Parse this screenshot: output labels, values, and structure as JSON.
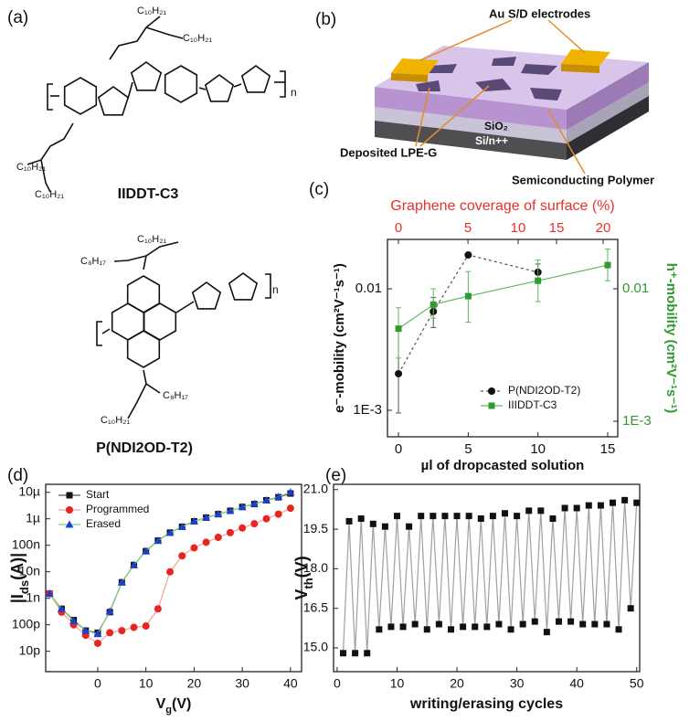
{
  "figure": {
    "a": {
      "label": "(a)",
      "molecule1": {
        "name": "IIDDT-C3",
        "substituents": [
          "C₁₀H₂₁",
          "C₁₀H₂₁",
          "C₁₀H₂₁",
          "C₁₀H₂₁"
        ],
        "repeat": "n"
      },
      "molecule2": {
        "name": "P(NDI2OD-T2)",
        "substituents": [
          "C₁₀H₂₁",
          "C₈H₁₇",
          "C₈H₁₇",
          "C₁₀H₂₁"
        ],
        "repeat": "n"
      }
    },
    "b": {
      "label": "(b)",
      "electrodes": "Au S/D electrodes",
      "oxide": "SiO₂",
      "substrate": "Si/n++",
      "flakes": "Deposited LPE-G",
      "polymer": "Semiconducting Polymer"
    }
  },
  "chart_data": [
    {
      "type": "line",
      "panel_label": "(c)",
      "xlabel": "µl of dropcasted solution",
      "ylabel": "e⁻-mobility (cm²V⁻¹s⁻¹)",
      "y2label": "h⁺-mobility (cm²V⁻¹s⁻¹)",
      "x2label": "Graphene coverage of surface (%)",
      "x2color": "#e8302a",
      "y2color": "#2f9a2f",
      "xlim": [
        -0.79,
        15.72
      ],
      "xticks": [
        0,
        5,
        10,
        15
      ],
      "x2ticks": [
        0,
        5,
        10,
        15,
        20
      ],
      "x2ticks_at_x": [
        0,
        4.98,
        8.58,
        11.33,
        14.67
      ],
      "ylog": true,
      "ylim": [
        0.000605,
        0.0255
      ],
      "yticks": [
        {
          "value": 0.001,
          "label": "1E-3"
        },
        {
          "value": 0.01,
          "label": "0.01"
        }
      ],
      "y2lim": [
        0.000763,
        0.0236
      ],
      "y2ticks": [
        {
          "value": 0.001,
          "label": "1E-3"
        },
        {
          "value": 0.01,
          "label": "0.01"
        }
      ],
      "legend": "lower right",
      "series": [
        {
          "name": "P(NDI2OD-T2)",
          "color": "#111111",
          "line_color": "#555555",
          "dash": true,
          "marker": "circle",
          "x": [
            0,
            2.5,
            5,
            10
          ],
          "values": [
            0.002,
            0.0065,
            0.019,
            0.0137
          ],
          "err_low": [
            0.00095,
            0.0048,
            null,
            0.0115
          ],
          "err_high": [
            0.0045,
            0.0085,
            null,
            0.016
          ]
        },
        {
          "name": "IIIDDT-C3",
          "color": "#2f9a2f",
          "line_color": "#5fba5f",
          "marker": "square",
          "axis": "y2",
          "x": [
            0,
            2.5,
            5,
            10,
            15
          ],
          "values": [
            0.005,
            0.0076,
            0.0088,
            0.0115,
            0.0151
          ],
          "err_low": [
            0.003,
            0.006,
            0.0056,
            0.008,
            0.0115
          ],
          "err_high": [
            0.0072,
            0.01,
            0.0135,
            0.0165,
            0.02
          ]
        }
      ]
    },
    {
      "type": "line",
      "panel_label": "(d)",
      "xlabel": [
        "V",
        "g",
        "(V)"
      ],
      "ylabel": [
        "|I",
        "ds",
        "(A)|"
      ],
      "xlim": [
        -10.8,
        42.3
      ],
      "xticks": [
        0,
        10,
        20,
        30,
        40
      ],
      "ylog": true,
      "ylim": [
        1.7e-12,
        2e-05
      ],
      "yticks": [
        {
          "value": 1e-11,
          "label": "10p"
        },
        {
          "value": 1e-10,
          "label": "100p"
        },
        {
          "value": 1e-09,
          "label": "1n"
        },
        {
          "value": 1e-08,
          "label": "10n"
        },
        {
          "value": 1e-07,
          "label": "100n"
        },
        {
          "value": 1e-06,
          "label": "1µ"
        },
        {
          "value": 1e-05,
          "label": "10µ"
        }
      ],
      "legend": "upper left",
      "x": [
        -10,
        -7.5,
        -5,
        -2.5,
        0,
        2.5,
        5,
        7.5,
        10,
        12.5,
        15,
        17.5,
        20,
        22.5,
        25,
        27.5,
        30,
        32.5,
        35,
        37.5,
        40
      ],
      "series": [
        {
          "name": "Start",
          "color": "#111111",
          "line_color": "#555555",
          "marker": "square",
          "values": [
            1.5e-09,
            4e-10,
            1.5e-10,
            6e-11,
            5e-11,
            3e-10,
            4e-09,
            1.8e-08,
            6e-08,
            1.5e-07,
            3e-07,
            5e-07,
            8e-07,
            1.1e-06,
            1.5e-06,
            2e-06,
            2.8e-06,
            3.6e-06,
            5e-06,
            6.5e-06,
            9e-06
          ]
        },
        {
          "name": "Programmed",
          "color": "#e8261f",
          "line_color": "#f4a0a0",
          "marker": "circle",
          "values": [
            1.5e-09,
            3e-10,
            1e-10,
            4e-11,
            2e-11,
            5e-11,
            6e-11,
            8e-11,
            9e-11,
            4e-10,
            1e-08,
            4e-08,
            8e-08,
            1.3e-07,
            2e-07,
            3e-07,
            4.5e-07,
            6.5e-07,
            1e-06,
            1.5e-06,
            2.5e-06
          ]
        },
        {
          "name": "Erased",
          "color": "#1d3fd0",
          "line_color": "#7fd07f",
          "marker": "triangle",
          "values": [
            1.5e-09,
            4e-10,
            1.4e-10,
            6e-11,
            4.5e-11,
            3.2e-10,
            4e-09,
            1.8e-08,
            6e-08,
            1.5e-07,
            3e-07,
            5e-07,
            8e-07,
            1.1e-06,
            1.5e-06,
            2e-06,
            2.8e-06,
            3.7e-06,
            5e-06,
            6.8e-06,
            1e-05
          ]
        }
      ]
    },
    {
      "type": "line",
      "panel_label": "(e)",
      "xlabel": "writing/erasing cycles",
      "ylabel": [
        "V",
        "th",
        "(V)"
      ],
      "xlim": [
        -0.6,
        50.5
      ],
      "xticks": [
        0,
        10,
        20,
        30,
        40,
        50
      ],
      "ylim": [
        14.1,
        21.2
      ],
      "yticks": [
        {
          "value": 15,
          "label": "15.0"
        },
        16.5,
        {
          "value": 18,
          "label": "18.0"
        },
        19.5,
        {
          "value": 21,
          "label": "21.0"
        }
      ],
      "x": [
        1,
        2,
        3,
        4,
        5,
        6,
        7,
        8,
        9,
        10,
        11,
        12,
        13,
        14,
        15,
        16,
        17,
        18,
        19,
        20,
        21,
        22,
        23,
        24,
        25,
        26,
        27,
        28,
        29,
        30,
        31,
        32,
        33,
        34,
        35,
        36,
        37,
        38,
        39,
        40,
        41,
        42,
        43,
        44,
        45,
        46,
        47,
        48,
        49,
        50
      ],
      "series": [
        {
          "color": "#111111",
          "line_color": "#a0a0a0",
          "marker": "square",
          "values": [
            14.8,
            19.8,
            14.8,
            19.9,
            14.8,
            19.7,
            15.7,
            19.6,
            15.8,
            20.0,
            15.8,
            19.6,
            15.9,
            20.0,
            15.7,
            20.0,
            15.9,
            20.0,
            15.7,
            20.0,
            15.8,
            20.0,
            15.8,
            19.9,
            15.8,
            20.0,
            15.9,
            20.1,
            15.7,
            20.0,
            15.9,
            20.2,
            16.0,
            20.2,
            15.6,
            19.9,
            16.0,
            20.3,
            16.0,
            20.3,
            15.9,
            20.4,
            15.9,
            20.4,
            15.9,
            20.5,
            15.7,
            20.6,
            16.5,
            20.5
          ]
        }
      ]
    }
  ]
}
